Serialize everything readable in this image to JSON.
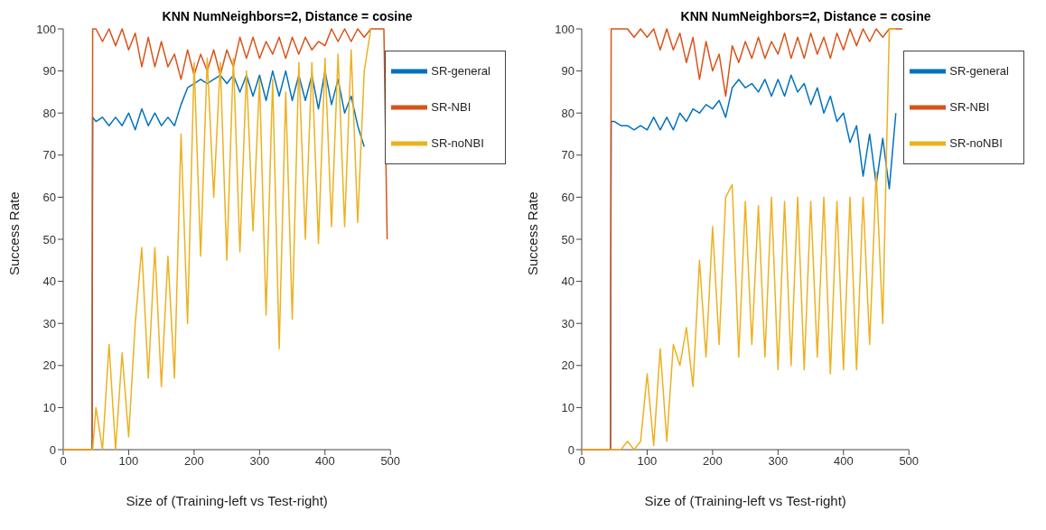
{
  "chart_data": [
    {
      "type": "line",
      "title": "KNN NumNeighbors=2, Distance = cosine",
      "xlabel": "Size of (Training-left vs Test-right)",
      "ylabel": "Success Rate",
      "xlim": [
        0,
        500
      ],
      "xticks": [
        0,
        100,
        200,
        300,
        400,
        500
      ],
      "ylim": [
        0,
        100
      ],
      "yticks": [
        0,
        10,
        20,
        30,
        40,
        50,
        60,
        70,
        80,
        90,
        100
      ],
      "legend": "top right",
      "grid": false,
      "marker": "none",
      "line_style": "solid",
      "x": [
        0,
        44,
        45,
        50,
        60,
        70,
        80,
        90,
        100,
        110,
        120,
        130,
        140,
        150,
        160,
        170,
        180,
        190,
        200,
        210,
        220,
        230,
        240,
        250,
        260,
        270,
        280,
        290,
        300,
        310,
        320,
        330,
        340,
        350,
        360,
        370,
        380,
        390,
        400,
        410,
        420,
        430,
        440,
        450,
        460,
        470,
        480,
        490,
        495
      ],
      "series": [
        {
          "name": "SR-general",
          "color": "#0072bd",
          "values": [
            0,
            0,
            79,
            78,
            79,
            77,
            79,
            77,
            80,
            76,
            81,
            77,
            80,
            77,
            79,
            77,
            82,
            86,
            87,
            88,
            87,
            88,
            89,
            87,
            89,
            85,
            89,
            84,
            89,
            83,
            90,
            84,
            90,
            83,
            89,
            83,
            89,
            81,
            90,
            82,
            88,
            80,
            84,
            77,
            72,
            null,
            null,
            null,
            null
          ]
        },
        {
          "name": "SR-NBI",
          "color": "#d95319",
          "values": [
            0,
            0,
            100,
            100,
            97,
            100,
            96,
            100,
            95,
            99,
            91,
            98,
            91,
            97,
            91,
            94,
            88,
            95,
            89,
            94,
            90,
            95,
            89,
            95,
            91,
            98,
            93,
            98,
            93,
            97,
            94,
            98,
            93,
            98,
            94,
            98,
            95,
            97,
            96,
            100,
            97,
            100,
            97,
            100,
            98,
            100,
            100,
            100,
            50
          ]
        },
        {
          "name": "SR-noNBI",
          "color": "#edb120",
          "values": [
            0,
            0,
            0,
            10,
            0,
            25,
            0,
            23,
            3,
            30,
            48,
            17,
            48,
            15,
            46,
            17,
            75,
            30,
            92,
            46,
            93,
            60,
            92,
            45,
            93,
            47,
            90,
            52,
            88,
            32,
            88,
            24,
            85,
            31,
            92,
            50,
            92,
            49,
            93,
            53,
            94,
            53,
            95,
            54,
            90,
            100,
            null,
            null,
            null
          ]
        }
      ]
    },
    {
      "type": "line",
      "title": "KNN NumNeighbors=2, Distance = cosine",
      "xlabel": "Size of (Training-left vs Test-right)",
      "ylabel": "Success Rate",
      "xlim": [
        0,
        500
      ],
      "xticks": [
        0,
        100,
        200,
        300,
        400,
        500
      ],
      "ylim": [
        0,
        100
      ],
      "yticks": [
        0,
        10,
        20,
        30,
        40,
        50,
        60,
        70,
        80,
        90,
        100
      ],
      "legend": "top right",
      "grid": false,
      "marker": "none",
      "line_style": "solid",
      "x": [
        0,
        44,
        45,
        50,
        60,
        70,
        80,
        90,
        100,
        110,
        120,
        130,
        140,
        150,
        160,
        170,
        180,
        190,
        200,
        210,
        220,
        230,
        240,
        250,
        260,
        270,
        280,
        290,
        300,
        310,
        320,
        330,
        340,
        350,
        360,
        370,
        380,
        390,
        400,
        410,
        420,
        430,
        440,
        450,
        460,
        470,
        480,
        490
      ],
      "series": [
        {
          "name": "SR-general",
          "color": "#0072bd",
          "values": [
            0,
            0,
            78,
            78,
            77,
            77,
            76,
            77,
            76,
            79,
            76,
            79,
            76,
            80,
            78,
            81,
            80,
            82,
            81,
            83,
            79,
            86,
            88,
            86,
            87,
            85,
            88,
            84,
            88,
            84,
            89,
            85,
            87,
            82,
            86,
            80,
            84,
            78,
            80,
            73,
            77,
            65,
            75,
            63,
            74,
            62,
            80,
            null
          ]
        },
        {
          "name": "SR-NBI",
          "color": "#d95319",
          "values": [
            0,
            0,
            100,
            100,
            100,
            100,
            98,
            100,
            98,
            100,
            95,
            100,
            95,
            99,
            92,
            98,
            88,
            97,
            90,
            94,
            84,
            96,
            92,
            97,
            93,
            98,
            93,
            97,
            94,
            99,
            93,
            98,
            93,
            99,
            94,
            98,
            93,
            99,
            95,
            100,
            96,
            100,
            97,
            100,
            98,
            100,
            100,
            100
          ]
        },
        {
          "name": "SR-noNBI",
          "color": "#edb120",
          "values": [
            0,
            0,
            0,
            0,
            0,
            2,
            0,
            2,
            18,
            1,
            24,
            2,
            25,
            20,
            29,
            15,
            45,
            22,
            53,
            25,
            60,
            63,
            22,
            59,
            25,
            58,
            22,
            60,
            19,
            59,
            20,
            60,
            19,
            59,
            22,
            60,
            18,
            59,
            19,
            60,
            19,
            60,
            25,
            66,
            30,
            100,
            100,
            null
          ]
        }
      ]
    }
  ]
}
